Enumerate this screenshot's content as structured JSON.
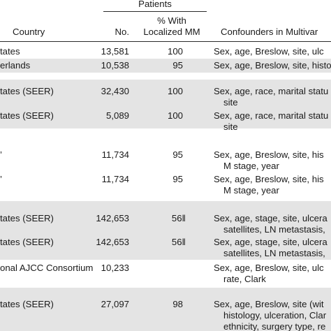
{
  "header": {
    "patients_group": "Patients",
    "country": "Country",
    "no": "No.",
    "pct_line1": "% With",
    "pct_line2": "Localized MM",
    "confounders": "Confounders in Multivar"
  },
  "rows": [
    {
      "country": "tates",
      "no": "13,581",
      "pct": "100",
      "conf1": "Sex, age, Breslow, site, ulc",
      "conf2": ""
    },
    {
      "country": "erlands",
      "no": "10,538",
      "pct": "95",
      "conf1": "Sex, age, Breslow, site, histolog",
      "conf2": ""
    },
    {
      "country": "tates (SEER)",
      "no": "32,430",
      "pct": "100",
      "conf1": "Sex, age, race, marital statu",
      "conf2": "site"
    },
    {
      "country": "tates (SEER)",
      "no": "5,089",
      "pct": "100",
      "conf1": "Sex, age, race, marital statu",
      "conf2": "site"
    },
    {
      "country": "’",
      "no": "11,734",
      "pct": "95",
      "conf1": "Sex, age, Breslow, site, his",
      "conf2": "M stage, year"
    },
    {
      "country": "’",
      "no": "11,734",
      "pct": "95",
      "conf1": "Sex, age, Breslow, site, his",
      "conf2": "M stage, year"
    },
    {
      "country": "tates (SEER)",
      "no": "142,653",
      "pct": "56‖",
      "conf1": "Sex, age, stage, site, ulcera",
      "conf2": "satellites, LN metastasis,"
    },
    {
      "country": "tates (SEER)",
      "no": "142,653",
      "pct": "56‖",
      "conf1": "Sex, age, stage, site, ulcera",
      "conf2": "satellites, LN metastasis,"
    },
    {
      "country": "onal AJCC Consortium",
      "no": "10,233",
      "pct": "",
      "conf1": "Sex, age, Breslow, site, ulc",
      "conf2": "rate, Clark"
    },
    {
      "country": "tates (SEER)",
      "no": "27,097",
      "pct": "98",
      "conf1": "Sex, age, Breslow, site (wit",
      "conf2": "histology, ulceration, Clar",
      "conf3": "ethnicity, surgery type, re"
    }
  ]
}
